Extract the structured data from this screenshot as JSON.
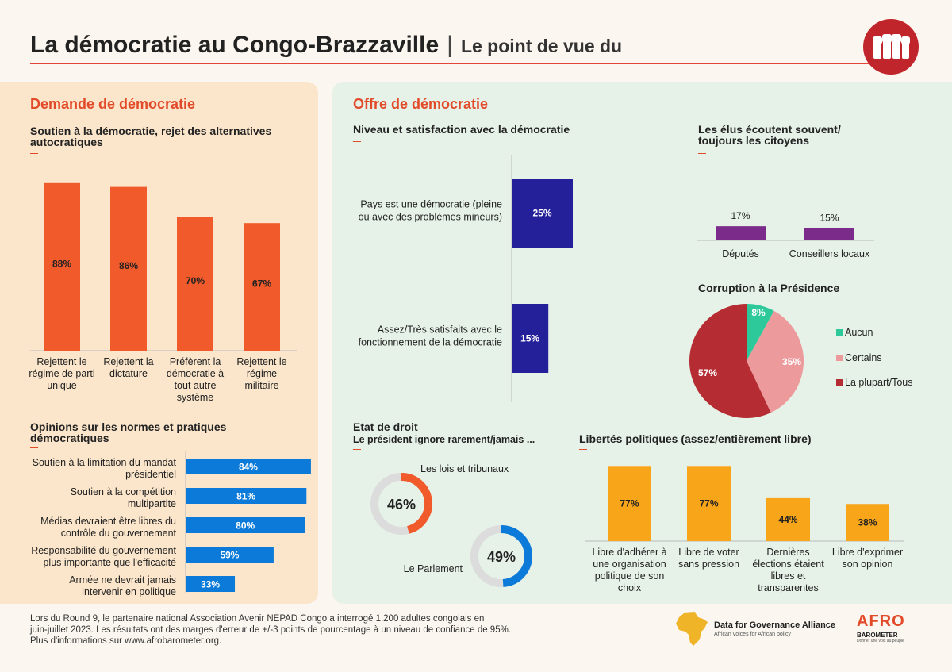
{
  "header": {
    "title": "La démocratie au Congo-Brazzaville",
    "separator": "|",
    "subtitle": "Le point de vue du"
  },
  "colors": {
    "accent": "#e24b2a",
    "bar_orange": "#f15a2b",
    "bar_blue": "#0b7ad8",
    "bar_navy": "#24209a",
    "bar_purple": "#7b2c8b",
    "bar_yellow": "#f9a51a",
    "pie_green": "#2ec99a",
    "pie_pink": "#ec9a9c",
    "pie_red": "#b52c32",
    "donut_grey": "#dcdcdc"
  },
  "demand": {
    "section_title": "Demande de démocratie",
    "support_title_1": "Soutien à la démocratie, rejet des alternatives",
    "support_title_2": "autocratiques",
    "norms_title_1": "Opinions sur les normes et pratiques",
    "norms_title_2": "démocratiques"
  },
  "supply": {
    "section_title": "Offre de démocratie",
    "level_title": "Niveau et satisfaction avec la démocratie",
    "elus_title_1": "Les élus écoutent souvent/",
    "elus_title_2": "toujours les citoyens",
    "corruption_title": "Corruption à la Présidence",
    "etat_title": "Etat de droit",
    "etat_subtitle": "Le président ignore rarement/jamais ...",
    "libertes_title": "Libertés politiques (assez/entièrement libre)"
  },
  "chart_data": [
    {
      "id": "support",
      "type": "bar",
      "categories": [
        [
          "Rejettent le",
          "régime de parti",
          "unique"
        ],
        [
          "Rejettent la",
          "dictature"
        ],
        [
          "Préfèrent la",
          "démocratie à",
          "tout autre",
          "système"
        ],
        [
          "Rejettent le",
          "régime",
          "militaire"
        ]
      ],
      "values": [
        88,
        86,
        70,
        67
      ],
      "labels": [
        "88%",
        "86%",
        "70%",
        "67%"
      ],
      "ylim": [
        0,
        100
      ]
    },
    {
      "id": "norms",
      "type": "bar",
      "orientation": "horizontal",
      "categories": [
        [
          "Soutien à la limitation du mandat",
          "présidentiel"
        ],
        [
          "Soutien à la compétition",
          "multipartite"
        ],
        [
          "Médias devraient être libres du",
          "contrôle du gouvernement"
        ],
        [
          "Responsabilité du gouvernement",
          "plus importante que l'efficacité"
        ],
        [
          "Armée ne devrait jamais",
          "intervenir en politique"
        ]
      ],
      "values": [
        84,
        81,
        80,
        59,
        33
      ],
      "labels": [
        "84%",
        "81%",
        "80%",
        "59%",
        "33%"
      ],
      "xlim": [
        0,
        100
      ]
    },
    {
      "id": "level",
      "type": "bar",
      "orientation": "horizontal",
      "categories": [
        [
          "Pays est une démocratie (pleine",
          "ou avec des problèmes mineurs)"
        ],
        [
          "Assez/Très satisfaits avec le",
          "fonctionnement de la démocratie"
        ]
      ],
      "values": [
        25,
        15
      ],
      "labels": [
        "25%",
        "15%"
      ],
      "xlim": [
        0,
        100
      ]
    },
    {
      "id": "elus",
      "type": "bar",
      "categories": [
        "Députés",
        "Conseillers locaux"
      ],
      "values": [
        17,
        15
      ],
      "labels": [
        "17%",
        "15%"
      ],
      "ylim": [
        0,
        100
      ]
    },
    {
      "id": "corruption",
      "type": "pie",
      "categories": [
        "Aucun",
        "Certains",
        "La plupart/Tous"
      ],
      "values": [
        8,
        35,
        57
      ],
      "labels": [
        "8%",
        "35%",
        "57%"
      ],
      "legend": "right"
    },
    {
      "id": "etat",
      "type": "pie",
      "style": "donut",
      "categories": [
        "Les lois et tribunaux",
        "Le Parlement"
      ],
      "values": [
        46,
        49
      ],
      "labels": [
        "46%",
        "49%"
      ]
    },
    {
      "id": "libertes",
      "type": "bar",
      "categories": [
        [
          "Libre d'adhérer à",
          "une organisation",
          "politique de son",
          "choix"
        ],
        [
          "Libre de voter",
          "sans pression"
        ],
        [
          "Dernières",
          "élections étaient",
          "libres et",
          "transparentes"
        ],
        [
          "Libre d'exprimer",
          "son opinion"
        ]
      ],
      "values": [
        77,
        77,
        44,
        38
      ],
      "labels": [
        "77%",
        "77%",
        "44%",
        "38%"
      ],
      "ylim": [
        0,
        100
      ]
    }
  ],
  "footer": {
    "line1": "Lors du Round 9, le partenaire national Association Avenir NEPAD Congo a interrogé 1.200 adultes congolais en",
    "line2": "juin-juillet 2023. Les résultats ont des marges d'erreur de +/-3 points de pourcentage à un niveau de confiance de 95%.",
    "line3": "Plus d'informations sur www.afrobarometer.org."
  },
  "logos": {
    "dga_name": "Data for Governance Alliance",
    "dga_tagline": "African voices for African policy",
    "afro_name": "AFRO",
    "afro_name2": "BAROMETER",
    "afro_tagline": "Donner une voix au peuple"
  }
}
